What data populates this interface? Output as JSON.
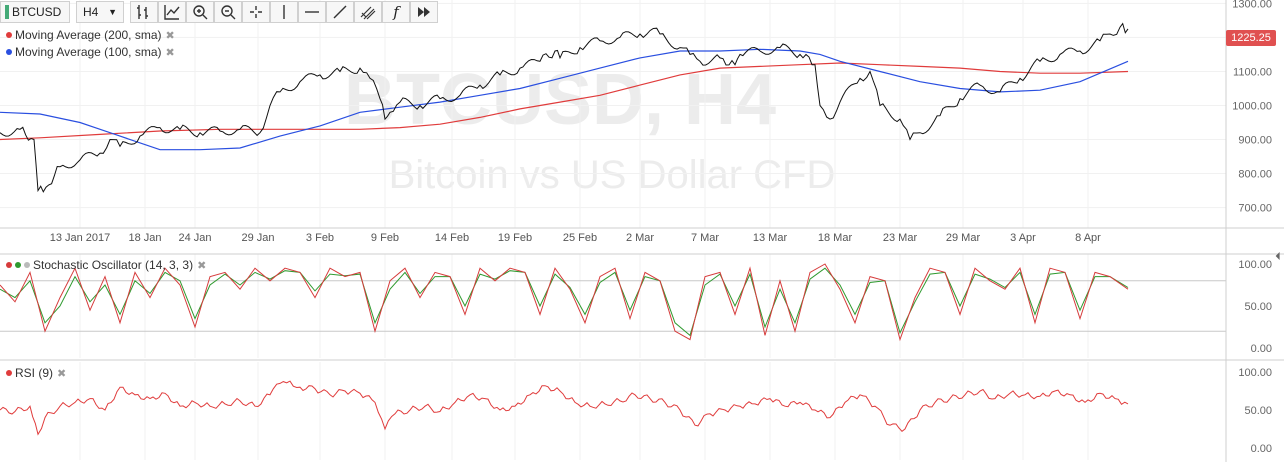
{
  "toolbar": {
    "symbol": "BTCUSD",
    "interval": "H4",
    "icons": [
      "bar-style-icon",
      "indicators-icon",
      "zoom-in-icon",
      "zoom-out-icon",
      "crosshair-icon",
      "vertical-line-icon",
      "horizontal-line-icon",
      "trend-line-icon",
      "pitchfork-icon",
      "function-icon",
      "fast-forward-icon"
    ]
  },
  "watermark": {
    "title": "BTCUSD, H4",
    "subtitle": "Bitcoin vs US Dollar CFD"
  },
  "legend": {
    "ma200": "Moving Average (200, sma)",
    "ma100": "Moving Average (100, sma)",
    "stoch": "Stochastic Oscillator (14, 3, 3)",
    "rsi": "RSI (9)"
  },
  "price_badge": "1225.25",
  "colors": {
    "ma200": "#e03c3c",
    "ma100": "#2a4fe0",
    "stoch_k": "#d63b3b",
    "stoch_d": "#2f9a2f",
    "price": "#111111",
    "rsi": "#e03c3c"
  },
  "chart_data": [
    {
      "type": "line",
      "panel": "price",
      "x_tick_labels": [
        "13 Jan 2017",
        "18 Jan",
        "24 Jan",
        "29 Jan",
        "3 Feb",
        "9 Feb",
        "14 Feb",
        "19 Feb",
        "25 Feb",
        "2 Mar",
        "7 Mar",
        "13 Mar",
        "18 Mar",
        "23 Mar",
        "29 Mar",
        "3 Apr",
        "8 Apr"
      ],
      "y_ticks": [
        "700.00",
        "800.00",
        "900.00",
        "1000.00",
        "1100.00",
        "1200.00",
        "1300.00"
      ],
      "ylim": [
        640,
        1310
      ],
      "last_price": 1225.25,
      "series": [
        {
          "name": "BTCUSD",
          "x": [
            0,
            20,
            34,
            38,
            46,
            60,
            80,
            100,
            110,
            120,
            140,
            160,
            180,
            200,
            220,
            240,
            260,
            270,
            280,
            300,
            320,
            340,
            360,
            370,
            380,
            385,
            390,
            400,
            420,
            440,
            460,
            480,
            500,
            520,
            540,
            555,
            560,
            580,
            600,
            620,
            640,
            650,
            660,
            680,
            690,
            700,
            720,
            735,
            740,
            760,
            780,
            800,
            815,
            820,
            830,
            840,
            860,
            870,
            880,
            900,
            910,
            920,
            940,
            960,
            980,
            1000,
            1020,
            1040,
            1060,
            1080,
            1100,
            1110,
            1120,
            1128
          ],
          "y": [
            920,
            930,
            900,
            750,
            760,
            820,
            840,
            860,
            900,
            880,
            910,
            935,
            930,
            920,
            925,
            930,
            920,
            1000,
            1040,
            1070,
            1090,
            1100,
            1110,
            1080,
            1020,
            960,
            980,
            1010,
            1000,
            1020,
            1030,
            1060,
            1090,
            1110,
            1130,
            1160,
            1140,
            1170,
            1190,
            1200,
            1210,
            1220,
            1210,
            1170,
            1150,
            1130,
            1140,
            1120,
            1150,
            1160,
            1170,
            1150,
            1120,
            1000,
            960,
            1010,
            1080,
            1100,
            1000,
            960,
            900,
            920,
            970,
            1020,
            1060,
            1040,
            1080,
            1130,
            1150,
            1160,
            1190,
            1210,
            1230,
            1225
          ]
        },
        {
          "name": "Moving Average (200, sma)",
          "x": [
            0,
            40,
            100,
            160,
            220,
            280,
            320,
            360,
            400,
            440,
            480,
            520,
            560,
            600,
            640,
            680,
            720,
            760,
            800,
            840,
            880,
            920,
            960,
            1000,
            1040,
            1080,
            1128
          ],
          "y": [
            900,
            905,
            915,
            925,
            930,
            930,
            930,
            930,
            935,
            945,
            965,
            990,
            1010,
            1030,
            1060,
            1090,
            1110,
            1115,
            1120,
            1125,
            1120,
            1115,
            1110,
            1100,
            1095,
            1095,
            1100
          ]
        },
        {
          "name": "Moving Average (100, sma)",
          "x": [
            0,
            40,
            80,
            120,
            160,
            200,
            240,
            280,
            320,
            360,
            400,
            440,
            480,
            520,
            560,
            600,
            640,
            680,
            720,
            760,
            800,
            820,
            840,
            880,
            920,
            960,
            1000,
            1040,
            1080,
            1128
          ],
          "y": [
            980,
            975,
            950,
            910,
            870,
            870,
            875,
            910,
            940,
            980,
            995,
            1010,
            1030,
            1050,
            1080,
            1110,
            1140,
            1160,
            1160,
            1165,
            1160,
            1150,
            1130,
            1100,
            1070,
            1050,
            1040,
            1045,
            1070,
            1130
          ]
        }
      ]
    },
    {
      "type": "line",
      "panel": "stochastic",
      "y_ticks": [
        "0.00",
        "50.00",
        "100.00"
      ],
      "ylim": [
        0,
        100
      ],
      "levels": [
        20,
        80
      ],
      "series": [
        {
          "name": "%K",
          "x": [
            0,
            15,
            30,
            45,
            60,
            75,
            90,
            105,
            120,
            135,
            150,
            165,
            180,
            195,
            210,
            225,
            240,
            255,
            270,
            285,
            300,
            315,
            330,
            345,
            360,
            375,
            390,
            405,
            420,
            435,
            450,
            465,
            480,
            495,
            510,
            525,
            540,
            555,
            570,
            585,
            600,
            615,
            630,
            645,
            660,
            675,
            690,
            705,
            720,
            735,
            750,
            765,
            780,
            795,
            810,
            825,
            840,
            855,
            870,
            885,
            900,
            915,
            930,
            945,
            960,
            975,
            990,
            1005,
            1020,
            1035,
            1050,
            1065,
            1080,
            1095,
            1110,
            1128
          ],
          "y": [
            75,
            55,
            90,
            20,
            60,
            95,
            45,
            85,
            30,
            90,
            60,
            95,
            75,
            25,
            85,
            90,
            70,
            95,
            80,
            95,
            90,
            60,
            95,
            85,
            90,
            20,
            80,
            95,
            60,
            90,
            85,
            40,
            95,
            80,
            95,
            90,
            40,
            95,
            70,
            30,
            85,
            95,
            35,
            90,
            80,
            20,
            10,
            85,
            90,
            40,
            95,
            15,
            80,
            20,
            90,
            100,
            70,
            30,
            85,
            80,
            10,
            60,
            95,
            90,
            40,
            95,
            80,
            70,
            95,
            30,
            95,
            90,
            35,
            90,
            85,
            70
          ]
        },
        {
          "name": "%D",
          "x": [
            0,
            15,
            30,
            45,
            60,
            75,
            90,
            105,
            120,
            135,
            150,
            165,
            180,
            195,
            210,
            225,
            240,
            255,
            270,
            285,
            300,
            315,
            330,
            345,
            360,
            375,
            390,
            405,
            420,
            435,
            450,
            465,
            480,
            495,
            510,
            525,
            540,
            555,
            570,
            585,
            600,
            615,
            630,
            645,
            660,
            675,
            690,
            705,
            720,
            735,
            750,
            765,
            780,
            795,
            810,
            825,
            840,
            855,
            870,
            885,
            900,
            915,
            930,
            945,
            960,
            975,
            990,
            1005,
            1020,
            1035,
            1050,
            1065,
            1080,
            1095,
            1110,
            1128
          ],
          "y": [
            70,
            60,
            80,
            30,
            50,
            85,
            55,
            75,
            40,
            80,
            65,
            90,
            80,
            35,
            75,
            88,
            75,
            90,
            82,
            92,
            90,
            68,
            88,
            86,
            88,
            30,
            70,
            90,
            65,
            85,
            85,
            50,
            88,
            82,
            92,
            90,
            50,
            88,
            72,
            40,
            78,
            90,
            45,
            85,
            80,
            30,
            15,
            75,
            88,
            50,
            88,
            25,
            70,
            30,
            82,
            95,
            75,
            40,
            78,
            80,
            18,
            55,
            88,
            90,
            50,
            88,
            82,
            72,
            90,
            40,
            88,
            90,
            45,
            85,
            85,
            72
          ]
        }
      ]
    },
    {
      "type": "line",
      "panel": "rsi",
      "y_ticks": [
        "0.00",
        "50.00",
        "100.00"
      ],
      "ylim": [
        0,
        100
      ],
      "series": [
        {
          "name": "RSI (9)",
          "x": [
            0,
            15,
            30,
            38,
            45,
            60,
            75,
            90,
            105,
            120,
            135,
            150,
            165,
            180,
            195,
            210,
            225,
            240,
            255,
            270,
            280,
            290,
            300,
            315,
            330,
            345,
            360,
            375,
            385,
            395,
            410,
            425,
            440,
            455,
            470,
            485,
            500,
            515,
            530,
            545,
            560,
            575,
            590,
            605,
            620,
            635,
            650,
            665,
            680,
            695,
            710,
            725,
            740,
            755,
            770,
            785,
            800,
            815,
            830,
            845,
            860,
            875,
            890,
            905,
            920,
            935,
            950,
            965,
            980,
            995,
            1010,
            1025,
            1040,
            1055,
            1070,
            1085,
            1100,
            1115,
            1128
          ],
          "y": [
            50,
            48,
            55,
            18,
            40,
            55,
            60,
            65,
            50,
            80,
            70,
            65,
            72,
            55,
            60,
            55,
            58,
            62,
            55,
            70,
            85,
            88,
            80,
            78,
            70,
            75,
            72,
            60,
            25,
            45,
            50,
            55,
            48,
            60,
            70,
            65,
            50,
            55,
            70,
            82,
            75,
            60,
            55,
            58,
            62,
            70,
            65,
            60,
            50,
            30,
            45,
            50,
            55,
            58,
            65,
            55,
            60,
            50,
            40,
            60,
            70,
            55,
            30,
            25,
            50,
            60,
            65,
            70,
            75,
            65,
            72,
            70,
            68,
            75,
            70,
            60,
            72,
            65,
            58
          ]
        }
      ]
    }
  ]
}
